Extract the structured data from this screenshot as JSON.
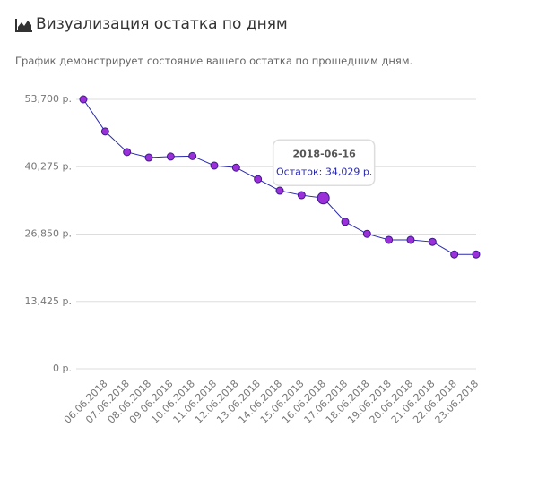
{
  "title": "Визуализация остатка по дням",
  "subtitle": "График демонстрирует состояние вашего остатка по прошедшим дням.",
  "chart_data": {
    "type": "line",
    "categories": [
      null,
      "06.06.2018",
      "07.06.2018",
      "08.06.2018",
      "09.06.2018",
      "10.06.2018",
      "11.06.2018",
      "12.06.2018",
      "13.06.2018",
      "14.06.2018",
      "15.06.2018",
      "16.06.2018",
      "17.06.2018",
      "18.06.2018",
      "19.06.2018",
      "20.06.2018",
      "21.06.2018",
      "22.06.2018",
      "23.06.2018"
    ],
    "series": [
      {
        "name": "Остаток",
        "color": "#9b30d9",
        "line_color": "#2a2ab0",
        "values": [
          53700,
          47300,
          43200,
          42100,
          42300,
          42400,
          40500,
          40100,
          37800,
          35500,
          34600,
          34029,
          29300,
          26900,
          25700,
          25700,
          25300,
          22800,
          22800
        ]
      }
    ],
    "ylim": [
      0,
      53700
    ],
    "yticks": [
      {
        "value": 0,
        "label": "0 р."
      },
      {
        "value": 13425,
        "label": "13,425 р."
      },
      {
        "value": 26850,
        "label": "26,850 р."
      },
      {
        "value": 40275,
        "label": "40,275 р."
      },
      {
        "value": 53700,
        "label": "53,700 р."
      }
    ],
    "grid": true,
    "tooltip": {
      "index": 11,
      "title": "2018-06-16",
      "label": "Остаток: 34,029 р."
    }
  }
}
